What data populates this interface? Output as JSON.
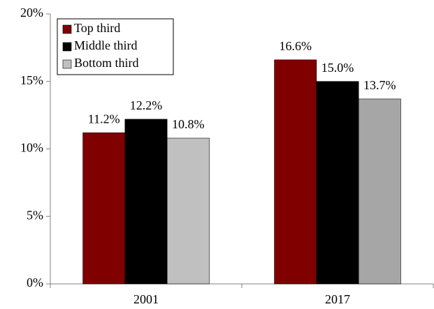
{
  "chart_data": {
    "type": "bar",
    "categories": [
      "2001",
      "2017"
    ],
    "series": [
      {
        "name": "Top third",
        "color": "#800000",
        "values": [
          11.2,
          16.6
        ],
        "value_labels": [
          "11.2%",
          "16.6%"
        ]
      },
      {
        "name": "Middle third",
        "color": "#000000",
        "values": [
          12.2,
          15.0
        ],
        "value_labels": [
          "12.2%",
          "15.0%"
        ]
      },
      {
        "name": "Bottom third",
        "color": [
          "#c0c0c0",
          "#a6a6a6"
        ],
        "values": [
          10.8,
          13.7
        ],
        "value_labels": [
          "10.8%",
          "13.7%"
        ]
      }
    ],
    "ylim": [
      0,
      20
    ],
    "yticks": [
      {
        "value": 0,
        "label": "0%"
      },
      {
        "value": 5,
        "label": "5%"
      },
      {
        "value": 10,
        "label": "10%"
      },
      {
        "value": 15,
        "label": "15%"
      },
      {
        "value": 20,
        "label": "20%"
      }
    ],
    "legend": "upper-left"
  }
}
